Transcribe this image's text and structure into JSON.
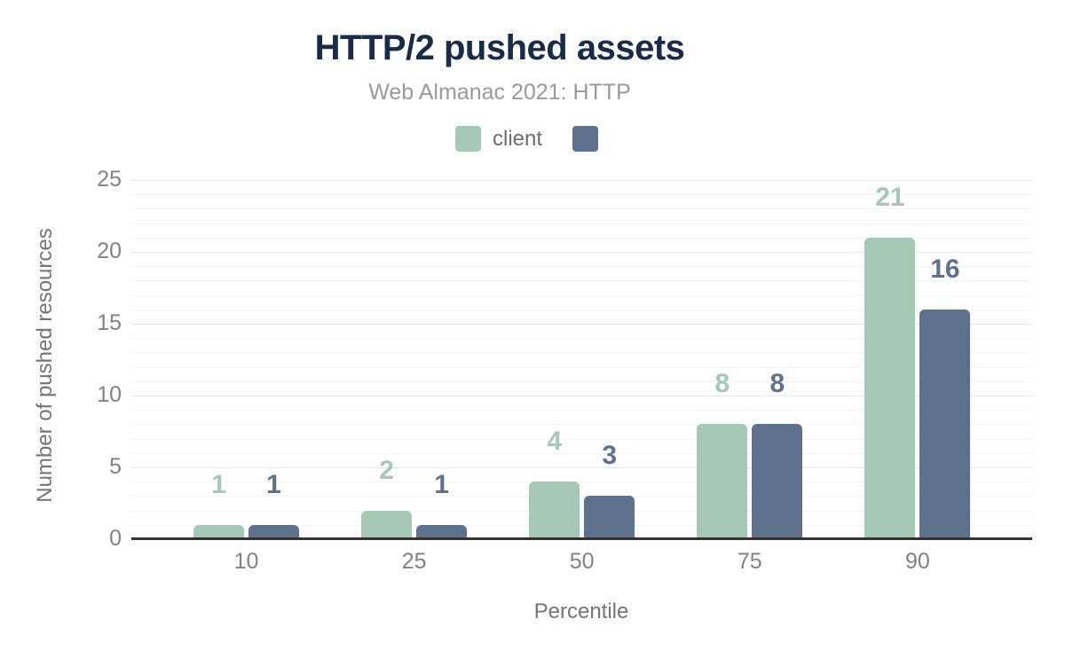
{
  "header": {
    "title": "HTTP/2 pushed assets",
    "subtitle": "Web Almanac 2021: HTTP"
  },
  "legend": [
    {
      "label": "client",
      "color": "#a7c8b7"
    },
    {
      "label": "",
      "color": "#5f718c"
    }
  ],
  "chart_data": {
    "type": "bar",
    "title": "HTTP/2 pushed assets",
    "subtitle": "Web Almanac 2021: HTTP",
    "categories": [
      "10",
      "25",
      "50",
      "75",
      "90"
    ],
    "series": [
      {
        "name": "client",
        "color": "#a7c8b7",
        "values": [
          1,
          2,
          4,
          8,
          21
        ]
      },
      {
        "name": "",
        "color": "#5f718c",
        "values": [
          1,
          1,
          3,
          8,
          16
        ]
      }
    ],
    "xlabel": "Percentile",
    "ylabel": "Number of pushed resources",
    "ylim": [
      0,
      25
    ],
    "yticks": [
      0,
      5,
      10,
      15,
      20,
      25
    ],
    "grid": {
      "horizontal_minor_step": 1,
      "horizontal_major_step": 5
    },
    "legend_position": "top",
    "annotations": "bar values shown above bars in series color"
  },
  "colors": {
    "title": "#1a2b49",
    "subtitle": "#9a9a9a",
    "axis_text": "#828282",
    "axis_title": "#757575",
    "baseline": "#333333",
    "grid_major": "#e7e7e7",
    "grid_minor": "#f5f5f5",
    "background": "#ffffff"
  }
}
